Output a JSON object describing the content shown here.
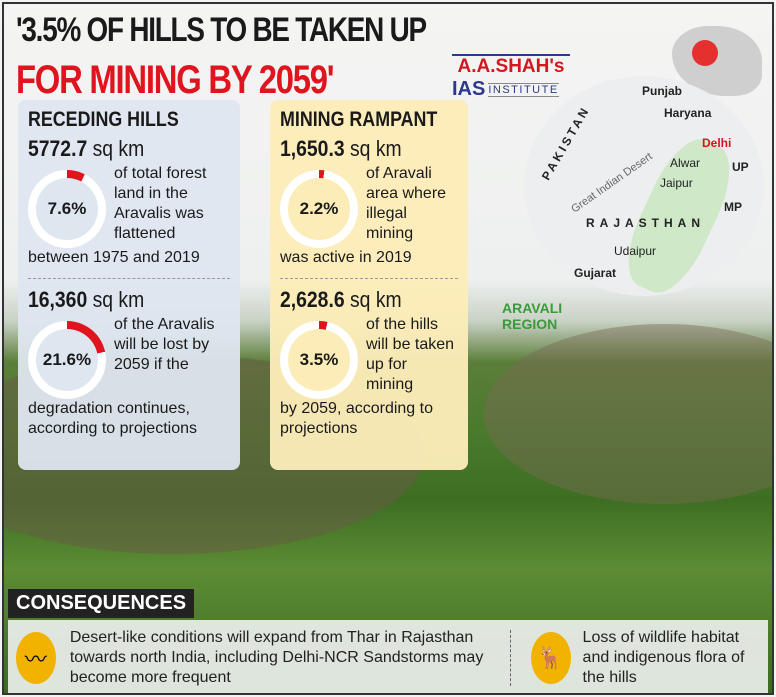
{
  "title": {
    "line1": "'3.5% OF HILLS TO BE TAKEN UP",
    "line2": "FOR MINING BY 2059'"
  },
  "logo": {
    "name": "A.A.SHAH's",
    "ias": "IAS",
    "institute": "INSTITUTE"
  },
  "receding": {
    "heading": "RECEDING HILLS",
    "stat1": {
      "value": "5772.7",
      "unit": "sq km",
      "percent": 7.6,
      "percent_label": "7.6%",
      "text": "of total forest land in the Aravalis was flattened",
      "tail": "between 1975 and 2019"
    },
    "stat2": {
      "value": "16,360",
      "unit": "sq km",
      "percent": 21.6,
      "percent_label": "21.6%",
      "text": "of the Aravalis will be lost by 2059 if the",
      "tail": "degradation continues, according to projections"
    }
  },
  "mining": {
    "heading": "MINING RAMPANT",
    "stat1": {
      "value": "1,650.3",
      "unit": "sq km",
      "percent": 2.2,
      "percent_label": "2.2%",
      "text": "of Aravali area where illegal mining",
      "tail": "was active in 2019"
    },
    "stat2": {
      "value": "2,628.6",
      "unit": "sq km",
      "percent": 3.5,
      "percent_label": "3.5%",
      "text": "of the hills will be taken up for mining",
      "tail": "by 2059, according to projections"
    }
  },
  "map": {
    "labels": [
      "PAKISTAN",
      "Punjab",
      "Haryana",
      "Delhi",
      "Great Indian Desert",
      "Alwar",
      "Jaipur",
      "UP",
      "RAJASTHAN",
      "MP",
      "Udaipur",
      "Gujarat"
    ],
    "region_label": "ARAVALI REGION"
  },
  "consequences": {
    "heading": "CONSEQUENCES",
    "items": [
      {
        "icon": "desert-icon",
        "text": "Desert-like conditions will expand from Thar in Rajasthan towards north India, including Delhi-NCR Sandstorms may become more frequent"
      },
      {
        "icon": "deer-icon",
        "text": "Loss of wildlife habitat and indigenous flora of the hills"
      }
    ]
  },
  "colors": {
    "red": "#e0141e",
    "ring": "#ffffff",
    "blue_box": "#dee6f0",
    "yellow_box": "#fcecb8",
    "icon": "#f2b300"
  }
}
